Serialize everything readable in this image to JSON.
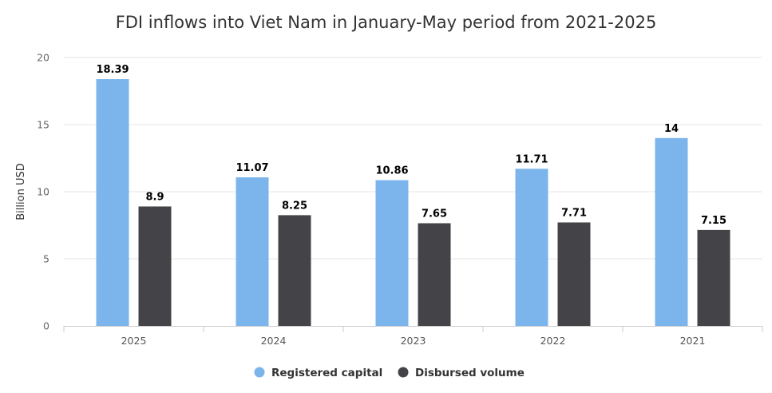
{
  "chart_data": {
    "type": "bar",
    "title": "FDI inflows into Viet Nam in January-May period from 2021-2025",
    "xlabel": "",
    "ylabel": "Billion USD",
    "categories": [
      "2025",
      "2024",
      "2023",
      "2022",
      "2021"
    ],
    "ylim": [
      0,
      20
    ],
    "yticks": [
      0,
      5,
      10,
      15,
      20
    ],
    "grid": true,
    "legend_position": "bottom",
    "series": [
      {
        "name": "Registered capital",
        "color": "#7cb5ec",
        "values": [
          18.39,
          11.07,
          10.86,
          11.71,
          14
        ],
        "labels": [
          "18.39",
          "11.07",
          "10.86",
          "11.71",
          "14"
        ]
      },
      {
        "name": "Disbursed volume",
        "color": "#434348",
        "values": [
          8.9,
          8.25,
          7.65,
          7.71,
          7.15
        ],
        "labels": [
          "8.9",
          "8.25",
          "7.65",
          "7.71",
          "7.15"
        ]
      }
    ]
  }
}
